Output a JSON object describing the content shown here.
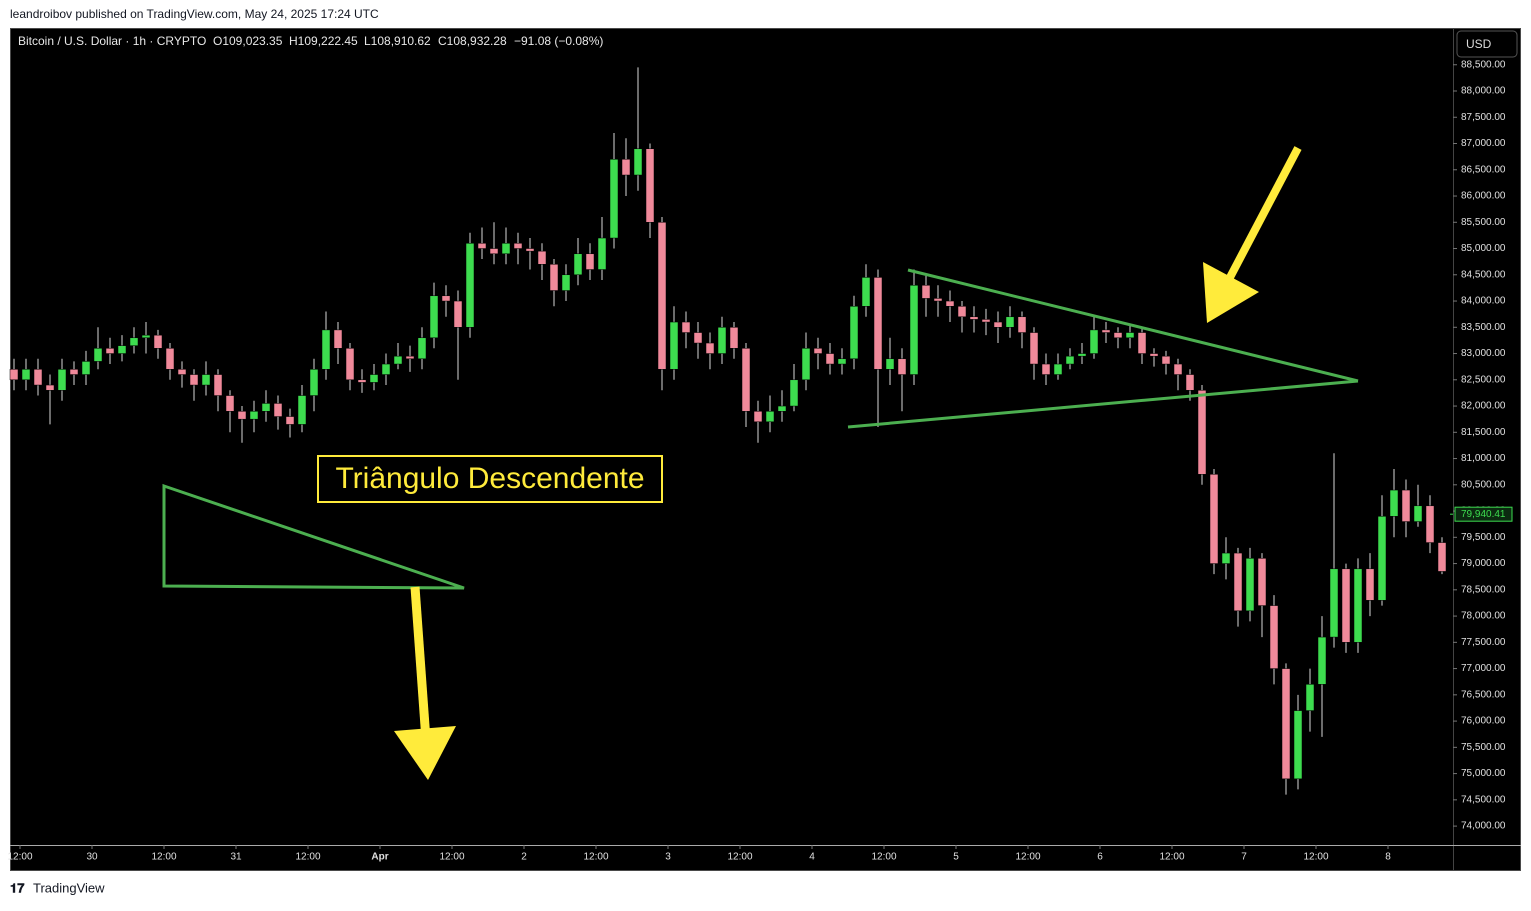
{
  "header": {
    "publisher": "leandroibov published on TradingView.com, May 24, 2025 17:24 UTC",
    "symbol": "Bitcoin / U.S. Dollar · 1h · CRYPTO",
    "open": "O109,023.35",
    "high": "H109,222.45",
    "low": "L108,910.62",
    "close": "C108,932.28",
    "change": "−91.08 (−0.08%)"
  },
  "chart_data": {
    "type": "candlestick",
    "currency": "USD",
    "annotation": "Triângulo Descendente",
    "colors": {
      "up": "#3ddc4f",
      "down": "#f0899a",
      "wick": "#d8d8d8"
    },
    "open": [
      82700,
      82500,
      82700,
      82400,
      82300,
      82700,
      82600,
      82850,
      83100,
      83000,
      83150,
      83300,
      83350,
      83100,
      82700,
      82600,
      82400,
      82600,
      82200,
      81900,
      81750,
      81900,
      82050,
      81800,
      81650,
      82200,
      82700,
      83450,
      83100,
      82500,
      82450,
      82600,
      82800,
      82950,
      82900,
      83300,
      84100,
      84000,
      83500,
      85100,
      85000,
      84900,
      85100,
      85000,
      84950,
      84700,
      84200,
      84500,
      84900,
      84600,
      85200,
      86700,
      86400,
      86900,
      85500,
      82700,
      83600,
      83400,
      83200,
      83000,
      83500,
      83100,
      81900,
      81700,
      81900,
      82000,
      82500,
      83100,
      83000,
      82800,
      82900,
      83900,
      84450,
      82700,
      82900,
      82600,
      84300,
      84050,
      84000,
      83900,
      83700,
      83650,
      83600,
      83500,
      83700,
      83400,
      82800,
      82600,
      82800,
      82950,
      83000,
      83450,
      83400,
      83300,
      83400,
      83000,
      82950,
      82800,
      82600,
      82300,
      80700,
      79000,
      79200,
      78100,
      79100,
      78200,
      77000,
      74900,
      76200,
      76700,
      77600,
      78900,
      77500,
      78900,
      78300,
      79900,
      80400,
      79800,
      80100,
      79400
    ],
    "high": [
      82900,
      82900,
      82900,
      82600,
      82900,
      82850,
      83050,
      83500,
      83300,
      83350,
      83500,
      83600,
      83450,
      83200,
      82850,
      82700,
      82850,
      82700,
      82300,
      82000,
      82100,
      82300,
      82200,
      81950,
      82400,
      82900,
      83800,
      83600,
      83200,
      82700,
      82800,
      83000,
      83200,
      83150,
      83500,
      84350,
      84300,
      84200,
      85300,
      85400,
      85500,
      85400,
      85300,
      85200,
      85100,
      84800,
      84700,
      85200,
      85100,
      85600,
      87200,
      87100,
      88450,
      87000,
      85600,
      83900,
      83800,
      83600,
      83400,
      83700,
      83600,
      83200,
      82100,
      82200,
      82300,
      82800,
      83400,
      83300,
      83200,
      83100,
      84100,
      84700,
      84600,
      83300,
      83100,
      84600,
      84500,
      84300,
      84200,
      84000,
      83900,
      83850,
      83800,
      83900,
      83800,
      83500,
      83000,
      83000,
      83100,
      83200,
      83700,
      83600,
      83500,
      83550,
      83500,
      83100,
      83050,
      82900,
      82700,
      82400,
      80800,
      79500,
      79300,
      79300,
      79200,
      78400,
      77100,
      76500,
      77000,
      78000,
      81100,
      79000,
      79100,
      79200,
      80300,
      80800,
      80600,
      80500,
      80300,
      79500
    ],
    "low": [
      82300,
      82300,
      82200,
      81650,
      82100,
      82400,
      82400,
      82700,
      82800,
      82850,
      83000,
      83000,
      82900,
      82500,
      82350,
      82100,
      82200,
      81900,
      81500,
      81300,
      81500,
      81700,
      81550,
      81400,
      81500,
      81900,
      82500,
      82800,
      82300,
      82250,
      82300,
      82400,
      82700,
      82650,
      82700,
      83100,
      83700,
      82500,
      83300,
      84800,
      84700,
      84700,
      84700,
      84600,
      84400,
      83900,
      84000,
      84300,
      84400,
      84400,
      85000,
      86000,
      86100,
      85200,
      82300,
      82500,
      83100,
      82900,
      82700,
      82800,
      82900,
      81600,
      81300,
      81500,
      81700,
      81900,
      82300,
      82700,
      82600,
      82600,
      82700,
      83700,
      81600,
      82400,
      81900,
      82400,
      83700,
      83700,
      83600,
      83400,
      83400,
      83350,
      83200,
      83300,
      83100,
      82500,
      82400,
      82500,
      82700,
      82800,
      82900,
      83200,
      83100,
      83100,
      82800,
      82750,
      82600,
      82300,
      82100,
      80500,
      78800,
      78700,
      77800,
      77900,
      77600,
      76700,
      74600,
      74700,
      75800,
      75700,
      77400,
      77300,
      77300,
      78000,
      78200,
      79500,
      79500,
      79700,
      79200,
      78800
    ],
    "close": [
      82500,
      82700,
      82400,
      82300,
      82700,
      82600,
      82850,
      83100,
      83000,
      83150,
      83300,
      83350,
      83100,
      82700,
      82600,
      82400,
      82600,
      82200,
      81900,
      81750,
      81900,
      82050,
      81800,
      81650,
      82200,
      82700,
      83450,
      83100,
      82500,
      82450,
      82600,
      82800,
      82950,
      82900,
      83300,
      84100,
      84000,
      83500,
      85100,
      85000,
      84900,
      85100,
      85000,
      84950,
      84700,
      84200,
      84500,
      84900,
      84600,
      85200,
      86700,
      86400,
      86900,
      85500,
      82700,
      83600,
      83400,
      83200,
      83000,
      83500,
      83100,
      81900,
      81700,
      81900,
      82000,
      82500,
      83100,
      83000,
      82800,
      82900,
      83900,
      84450,
      82700,
      82900,
      82600,
      84300,
      84050,
      84000,
      83900,
      83700,
      83650,
      83600,
      83500,
      83700,
      83400,
      82800,
      82600,
      82800,
      82950,
      83000,
      83450,
      83400,
      83300,
      83400,
      83000,
      82950,
      82800,
      82600,
      82300,
      80700,
      79000,
      79200,
      78100,
      79100,
      78200,
      77000,
      74900,
      76200,
      76700,
      77600,
      78900,
      77500,
      78900,
      78300,
      79900,
      80400,
      79800,
      80100,
      79400,
      78850
    ],
    "ylim": [
      73640,
      89200
    ],
    "yticks": [
      {
        "value": 74000,
        "label": "74,000.00"
      },
      {
        "value": 74500,
        "label": "74,500.00"
      },
      {
        "value": 75000,
        "label": "75,000.00"
      },
      {
        "value": 75500,
        "label": "75,500.00"
      },
      {
        "value": 76000,
        "label": "76,000.00"
      },
      {
        "value": 76500,
        "label": "76,500.00"
      },
      {
        "value": 77000,
        "label": "77,000.00"
      },
      {
        "value": 77500,
        "label": "77,500.00"
      },
      {
        "value": 78000,
        "label": "78,000.00"
      },
      {
        "value": 78500,
        "label": "78,500.00"
      },
      {
        "value": 79000,
        "label": "79,000.00"
      },
      {
        "value": 79500,
        "label": "79,500.00"
      },
      {
        "value": 80000,
        "label": "80,000.00"
      },
      {
        "value": 80500,
        "label": "80,500.00"
      },
      {
        "value": 81000,
        "label": "81,000.00"
      },
      {
        "value": 81500,
        "label": "81,500.00"
      },
      {
        "value": 82000,
        "label": "82,000.00"
      },
      {
        "value": 82500,
        "label": "82,500.00"
      },
      {
        "value": 83000,
        "label": "83,000.00"
      },
      {
        "value": 83500,
        "label": "83,500.00"
      },
      {
        "value": 84000,
        "label": "84,000.00"
      },
      {
        "value": 84500,
        "label": "84,500.00"
      },
      {
        "value": 85000,
        "label": "85,000.00"
      },
      {
        "value": 85500,
        "label": "85,500.00"
      },
      {
        "value": 86000,
        "label": "86,000.00"
      },
      {
        "value": 86500,
        "label": "86,500.00"
      },
      {
        "value": 87000,
        "label": "87,000.00"
      },
      {
        "value": 87500,
        "label": "87,500.00"
      },
      {
        "value": 88000,
        "label": "88,000.00"
      },
      {
        "value": 88500,
        "label": "88,500.00"
      }
    ],
    "xticks": [
      {
        "value": 0.5,
        "label": "12:00"
      },
      {
        "value": 6.5,
        "label": "30"
      },
      {
        "value": 12.5,
        "label": "12:00"
      },
      {
        "value": 18.5,
        "label": "31"
      },
      {
        "value": 24.5,
        "label": "12:00"
      },
      {
        "value": 30.5,
        "label": "Apr"
      },
      {
        "value": 36.5,
        "label": "12:00"
      },
      {
        "value": 42.5,
        "label": "2"
      },
      {
        "value": 48.5,
        "label": "12:00"
      },
      {
        "value": 54.5,
        "label": "3"
      },
      {
        "value": 60.5,
        "label": "12:00"
      },
      {
        "value": 66.5,
        "label": "4"
      },
      {
        "value": 72.5,
        "label": "12:00"
      },
      {
        "value": 78.5,
        "label": "5"
      },
      {
        "value": 84.5,
        "label": "12:00"
      },
      {
        "value": 90.5,
        "label": "6"
      },
      {
        "value": 96.5,
        "label": "12:00"
      },
      {
        "value": 102.5,
        "label": "7"
      },
      {
        "value": 108.5,
        "label": "12:00"
      },
      {
        "value": 114.5,
        "label": "8"
      }
    ],
    "last_price": {
      "value": 79940.41,
      "label": "79,940.41"
    }
  },
  "footer": {
    "brand": "TradingView"
  }
}
